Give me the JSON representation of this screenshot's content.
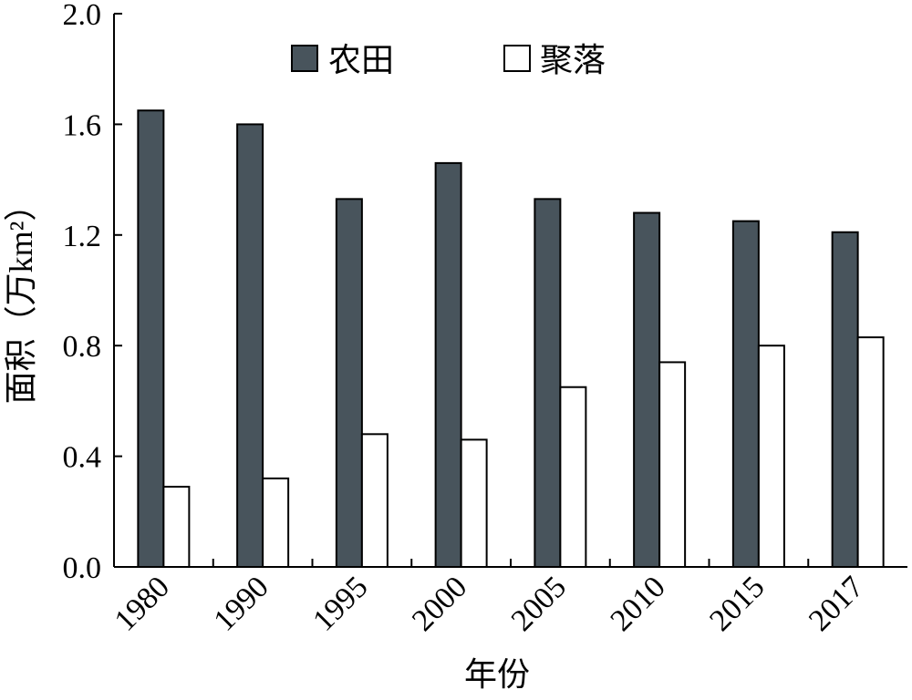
{
  "chart_data": {
    "type": "bar",
    "title": "",
    "xlabel": "年份",
    "ylabel": "面积（万km²）",
    "ylim": [
      0,
      2.0
    ],
    "yticks": [
      "0.0",
      "0.4",
      "0.8",
      "1.2",
      "1.6",
      "2.0"
    ],
    "categories": [
      "1980",
      "1990",
      "1995",
      "2000",
      "2005",
      "2010",
      "2015",
      "2017"
    ],
    "series": [
      {
        "name": "农田",
        "color": "#48545c",
        "values": [
          1.65,
          1.6,
          1.33,
          1.46,
          1.33,
          1.28,
          1.25,
          1.21
        ]
      },
      {
        "name": "聚落",
        "color": "#ffffff",
        "values": [
          0.29,
          0.32,
          0.48,
          0.46,
          0.65,
          0.74,
          0.8,
          0.83
        ]
      }
    ],
    "grid": false,
    "legend_position": "top"
  }
}
